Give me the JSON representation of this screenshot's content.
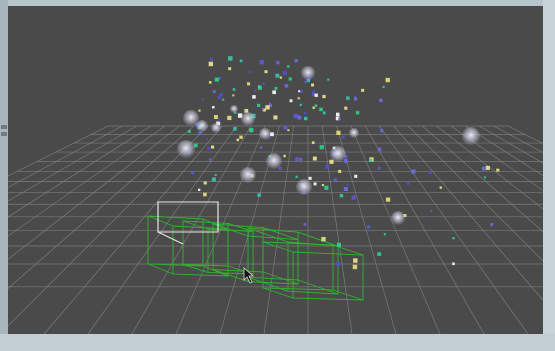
{
  "viewport": {
    "background": "#4a4a4a",
    "grid_color": "#8a8a8a",
    "camera_wireframe_color": "#2fb52f",
    "selected_camera_color": "#e8e8e8"
  },
  "icons": {
    "cursor": "mouse-pointer-icon"
  }
}
